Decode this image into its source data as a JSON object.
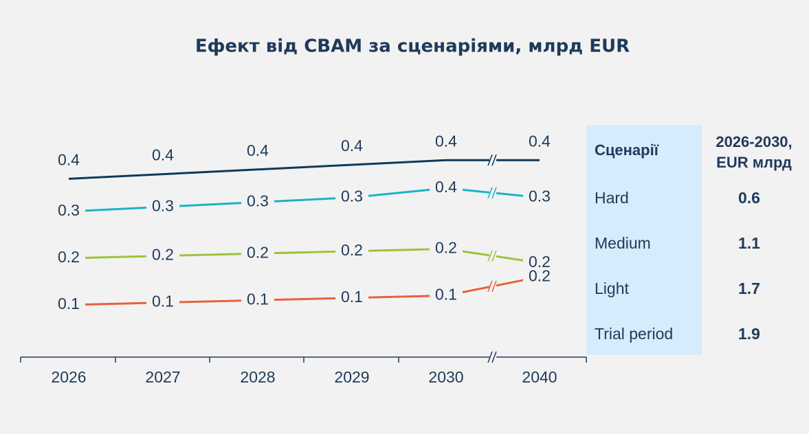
{
  "chart_data": {
    "type": "line",
    "title": "Ефект від CBAM за сценаріями, млрд EUR",
    "categories": [
      "2026",
      "2027",
      "2028",
      "2029",
      "2030",
      "2040"
    ],
    "series": [
      {
        "color": "#0d3a5c",
        "values": [
          0.37,
          0.38,
          0.39,
          0.4,
          0.41,
          0.41
        ],
        "value_labels": [
          "0.4",
          "0.4",
          "0.4",
          "0.4",
          "0.4",
          "0.4"
        ]
      },
      {
        "color": "#1ab3c6",
        "values": [
          0.3,
          0.31,
          0.32,
          0.33,
          0.35,
          0.33
        ],
        "value_labels": [
          "0.3",
          "0.3",
          "0.3",
          "0.3",
          "0.4",
          "0.3"
        ]
      },
      {
        "color": "#9dc33b",
        "values": [
          0.2,
          0.205,
          0.21,
          0.215,
          0.22,
          0.19
        ],
        "value_labels": [
          "0.2",
          "0.2",
          "0.2",
          "0.2",
          "0.2",
          "0.2"
        ]
      },
      {
        "color": "#e8603c",
        "values": [
          0.1,
          0.105,
          0.11,
          0.115,
          0.12,
          0.16
        ],
        "value_labels": [
          "0.1",
          "0.1",
          "0.1",
          "0.1",
          "0.1",
          "0.2"
        ]
      }
    ]
  },
  "table": {
    "header": [
      "Сценарії",
      "2026-2030, EUR млрд"
    ],
    "rows": [
      [
        "Hard",
        "0.6"
      ],
      [
        "Medium",
        "1.1"
      ],
      [
        "Light",
        "1.7"
      ],
      [
        "Trial period",
        "1.9"
      ]
    ]
  }
}
